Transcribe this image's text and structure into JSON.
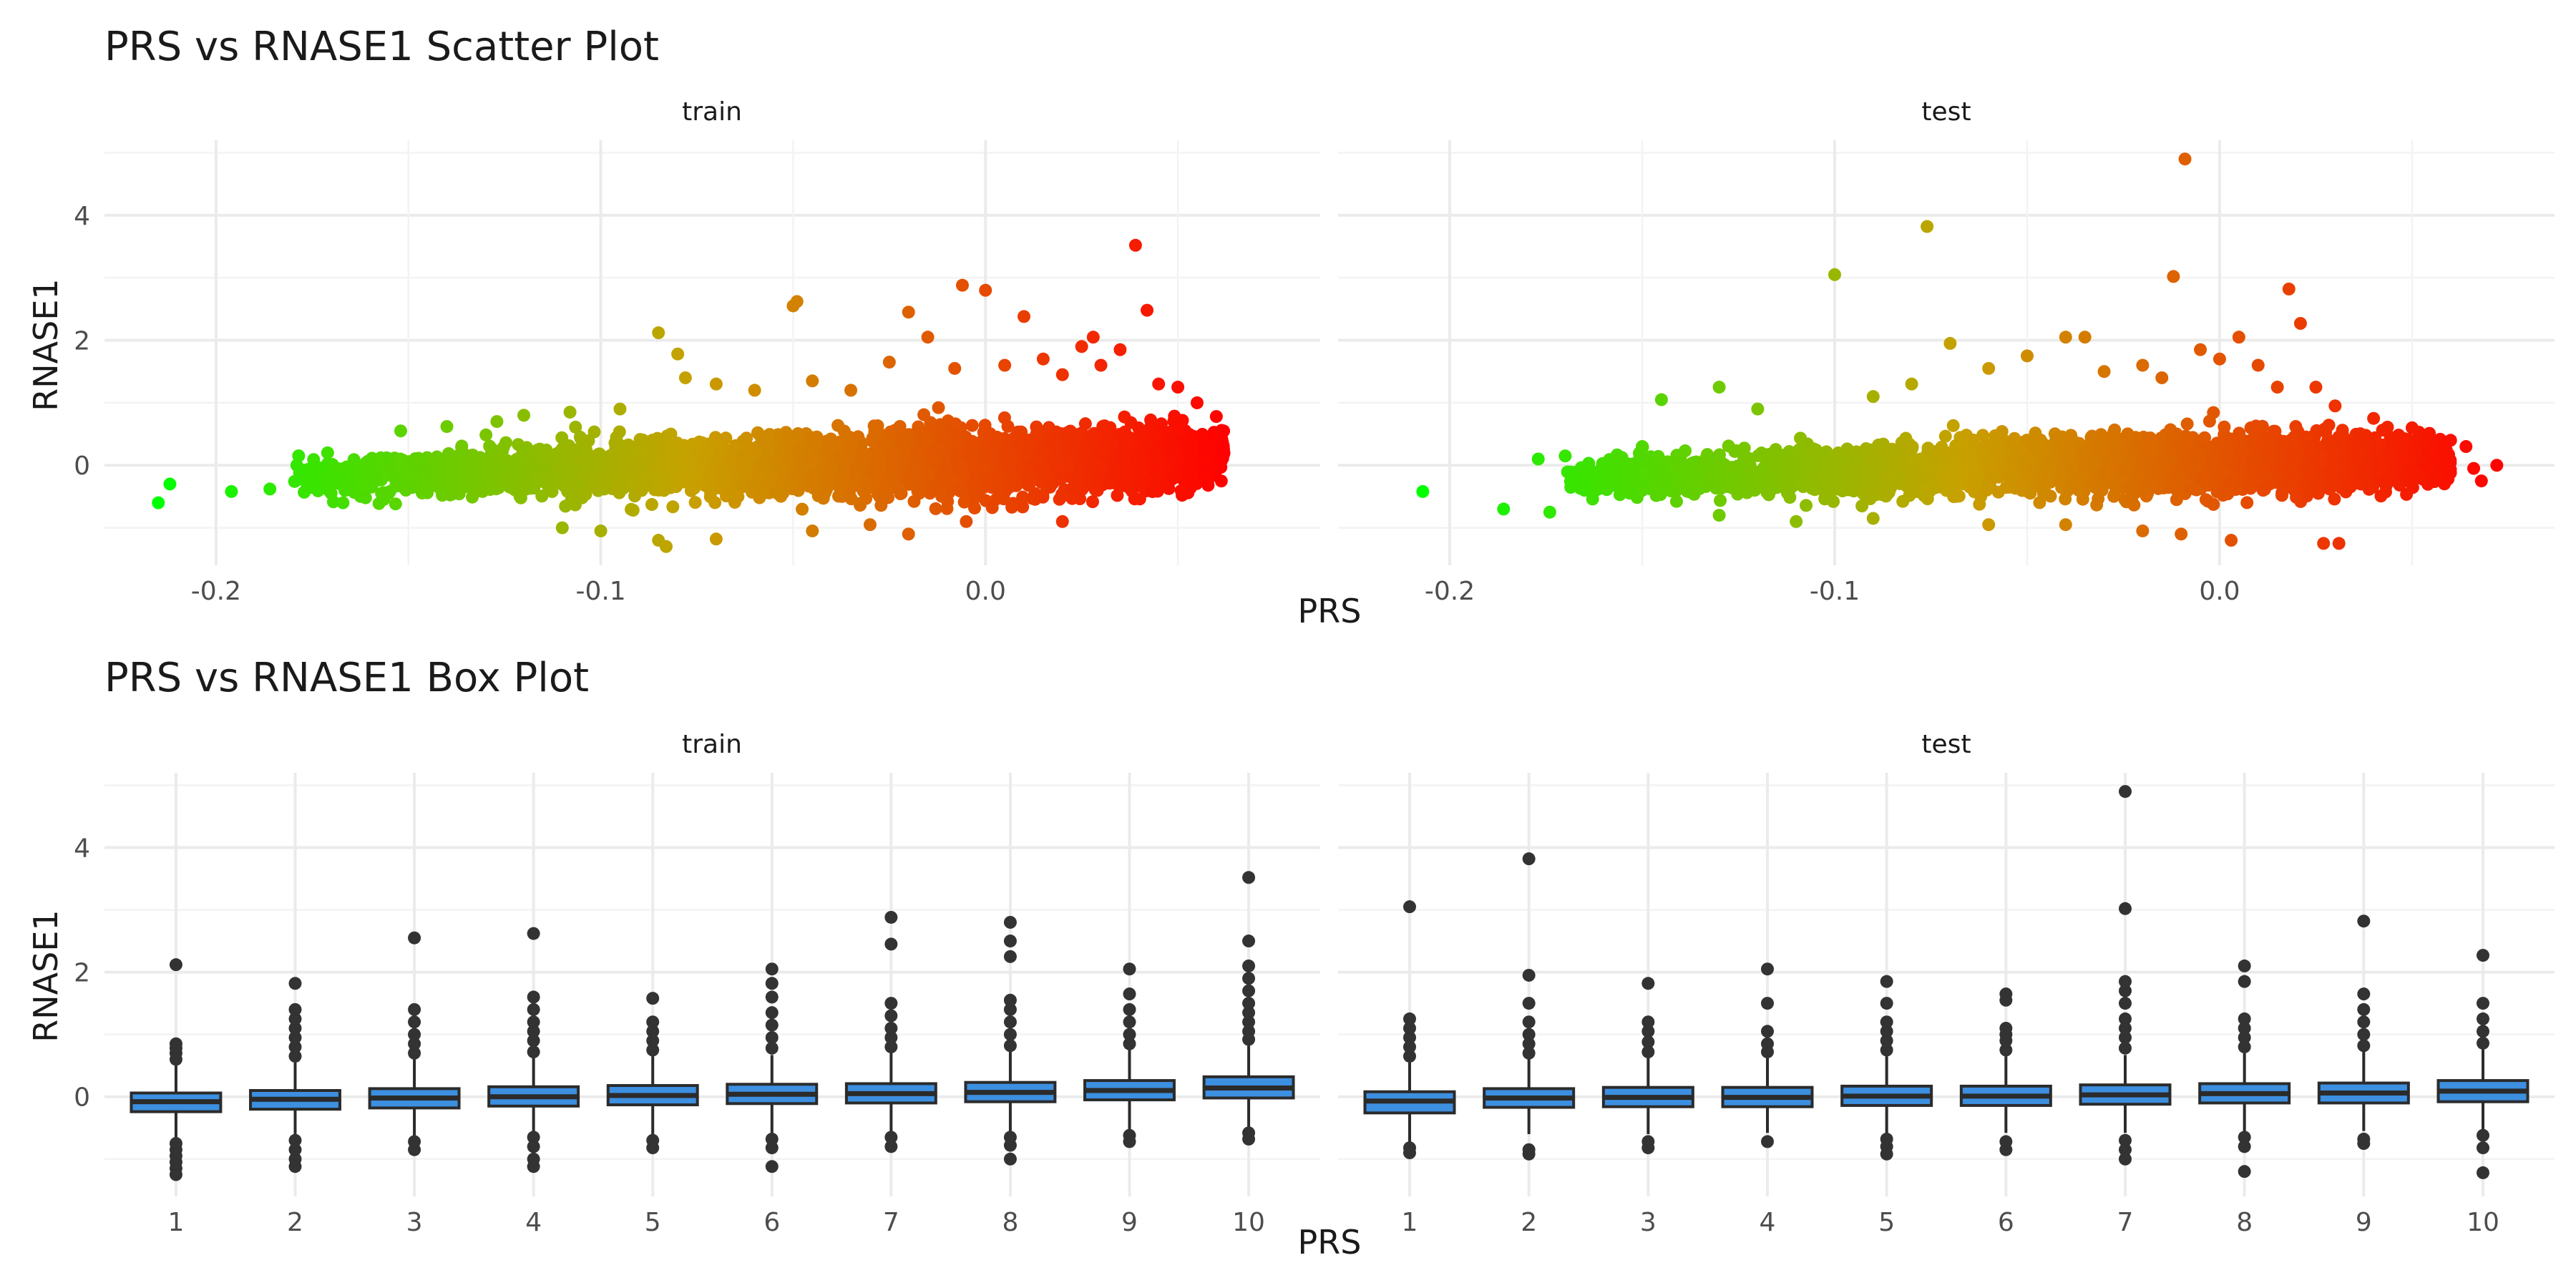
{
  "colors": {
    "low": "#00ff00",
    "mid": "#c8a000",
    "high": "#ff0000",
    "box_fill": "#3d8fe0",
    "box_stroke": "#2b2b2b",
    "outlier": "#333333"
  },
  "chart_data": [
    {
      "type": "scatter",
      "title": "PRS vs RNASE1 Scatter Plot",
      "xlabel": "PRS",
      "ylabel": "RNASE1",
      "ylim": [
        -1.6,
        5.2
      ],
      "yticks": [
        0,
        2,
        4
      ],
      "grid": true,
      "color_scale": "gradient by PRS: green (low) to red (high)",
      "facets": [
        {
          "name": "train",
          "xlim": [
            -0.229,
            0.087
          ],
          "xticks": [
            -0.2,
            -0.1,
            0.0
          ],
          "xtick_labels": [
            "-0.2",
            "-0.1",
            "0.0"
          ],
          "x_range": [
            -0.215,
            0.063
          ],
          "points": [
            [
              -0.215,
              -0.6
            ],
            [
              -0.212,
              -0.3
            ],
            [
              -0.196,
              -0.42
            ],
            [
              -0.186,
              -0.38
            ],
            [
              -0.179,
              0.0
            ],
            [
              -0.176,
              -0.3
            ],
            [
              -0.171,
              0.2
            ],
            [
              -0.167,
              -0.6
            ],
            [
              -0.16,
              -0.15
            ],
            [
              -0.152,
              0.55
            ],
            [
              -0.14,
              0.62
            ],
            [
              -0.127,
              0.7
            ],
            [
              -0.12,
              0.8
            ],
            [
              -0.108,
              0.85
            ],
            [
              -0.095,
              0.9
            ],
            [
              -0.085,
              2.12
            ],
            [
              -0.08,
              1.78
            ],
            [
              -0.078,
              1.4
            ],
            [
              -0.07,
              1.3
            ],
            [
              -0.06,
              1.2
            ],
            [
              -0.05,
              2.55
            ],
            [
              -0.049,
              2.62
            ],
            [
              -0.045,
              1.35
            ],
            [
              -0.035,
              1.2
            ],
            [
              -0.025,
              1.65
            ],
            [
              -0.02,
              2.45
            ],
            [
              -0.015,
              2.05
            ],
            [
              -0.008,
              1.55
            ],
            [
              -0.006,
              2.88
            ],
            [
              0.0,
              2.8
            ],
            [
              0.005,
              1.6
            ],
            [
              0.01,
              2.38
            ],
            [
              0.015,
              1.7
            ],
            [
              0.02,
              1.45
            ],
            [
              0.025,
              1.9
            ],
            [
              0.028,
              2.05
            ],
            [
              0.03,
              1.6
            ],
            [
              0.035,
              1.85
            ],
            [
              0.039,
              3.52
            ],
            [
              0.042,
              2.48
            ],
            [
              0.045,
              1.3
            ],
            [
              0.05,
              1.25
            ],
            [
              0.055,
              1.0
            ],
            [
              0.06,
              0.78
            ],
            [
              0.062,
              0.2
            ],
            [
              -0.11,
              -1.0
            ],
            [
              -0.1,
              -1.05
            ],
            [
              -0.085,
              -1.2
            ],
            [
              -0.083,
              -1.3
            ],
            [
              -0.07,
              -1.18
            ],
            [
              -0.045,
              -1.05
            ],
            [
              -0.03,
              -0.95
            ],
            [
              -0.02,
              -1.1
            ],
            [
              -0.005,
              -0.9
            ],
            [
              0.02,
              -0.9
            ]
          ],
          "cluster_curve": {
            "x": [
              -0.18,
              -0.15,
              -0.12,
              -0.09,
              -0.06,
              -0.03,
              0.0,
              0.03,
              0.05,
              0.062
            ],
            "median": [
              -0.2,
              -0.15,
              -0.1,
              -0.06,
              -0.03,
              0.0,
              0.04,
              0.08,
              0.12,
              0.15
            ],
            "spread": [
              0.3,
              0.4,
              0.5,
              0.55,
              0.55,
              0.6,
              0.6,
              0.6,
              0.55,
              0.45
            ]
          }
        },
        {
          "name": "test",
          "xlim": [
            -0.229,
            0.087
          ],
          "xticks": [
            -0.2,
            -0.1,
            0.0
          ],
          "xtick_labels": [
            "-0.2",
            "-0.1",
            "0.0"
          ],
          "x_range": [
            -0.207,
            0.074
          ],
          "points": [
            [
              -0.207,
              -0.42
            ],
            [
              -0.186,
              -0.7
            ],
            [
              -0.177,
              0.1
            ],
            [
              -0.174,
              -0.75
            ],
            [
              -0.17,
              0.15
            ],
            [
              -0.165,
              -0.4
            ],
            [
              -0.15,
              0.3
            ],
            [
              -0.145,
              1.05
            ],
            [
              -0.13,
              1.25
            ],
            [
              -0.12,
              0.9
            ],
            [
              -0.1,
              3.05
            ],
            [
              -0.09,
              1.1
            ],
            [
              -0.08,
              1.3
            ],
            [
              -0.076,
              3.82
            ],
            [
              -0.07,
              1.95
            ],
            [
              -0.06,
              1.55
            ],
            [
              -0.05,
              1.75
            ],
            [
              -0.04,
              2.05
            ],
            [
              -0.035,
              2.05
            ],
            [
              -0.03,
              1.5
            ],
            [
              -0.02,
              1.6
            ],
            [
              -0.015,
              1.4
            ],
            [
              -0.012,
              3.02
            ],
            [
              -0.009,
              4.9
            ],
            [
              -0.005,
              1.85
            ],
            [
              0.0,
              1.7
            ],
            [
              0.005,
              2.05
            ],
            [
              0.01,
              1.6
            ],
            [
              0.015,
              1.25
            ],
            [
              0.018,
              2.82
            ],
            [
              0.021,
              2.27
            ],
            [
              0.025,
              1.25
            ],
            [
              0.03,
              0.95
            ],
            [
              0.04,
              0.75
            ],
            [
              0.05,
              0.6
            ],
            [
              0.06,
              0.4
            ],
            [
              0.064,
              0.3
            ],
            [
              0.066,
              -0.05
            ],
            [
              0.068,
              -0.25
            ],
            [
              0.072,
              0.0
            ],
            [
              -0.13,
              -0.8
            ],
            [
              -0.11,
              -0.9
            ],
            [
              -0.09,
              -0.85
            ],
            [
              -0.06,
              -0.95
            ],
            [
              -0.04,
              -0.95
            ],
            [
              -0.02,
              -1.05
            ],
            [
              -0.01,
              -1.1
            ],
            [
              0.003,
              -1.2
            ],
            [
              0.027,
              -1.25
            ],
            [
              0.031,
              -1.25
            ]
          ],
          "cluster_curve": {
            "x": [
              -0.17,
              -0.14,
              -0.11,
              -0.08,
              -0.05,
              -0.02,
              0.01,
              0.03,
              0.05,
              0.06
            ],
            "median": [
              -0.2,
              -0.15,
              -0.1,
              -0.07,
              -0.04,
              0.0,
              0.03,
              0.06,
              0.08,
              0.05
            ],
            "spread": [
              0.3,
              0.4,
              0.45,
              0.5,
              0.5,
              0.55,
              0.55,
              0.5,
              0.45,
              0.35
            ]
          }
        }
      ]
    },
    {
      "type": "box",
      "title": "PRS vs RNASE1 Box Plot",
      "xlabel": "PRS",
      "ylabel": "RNASE1",
      "ylim": [
        -1.6,
        5.2
      ],
      "yticks": [
        0,
        2,
        4
      ],
      "grid": true,
      "categories": [
        "1",
        "2",
        "3",
        "4",
        "5",
        "6",
        "7",
        "8",
        "9",
        "10"
      ],
      "facets": [
        {
          "name": "train",
          "boxes": [
            {
              "q1": -0.24,
              "median": -0.08,
              "q3": 0.06,
              "wlo": -0.68,
              "whi": 0.5,
              "outliers": [
                0.6,
                0.7,
                0.78,
                0.85,
                2.12,
                -0.75,
                -0.85,
                -0.95,
                -1.05,
                -1.15,
                -1.25
              ]
            },
            {
              "q1": -0.2,
              "median": -0.04,
              "q3": 0.1,
              "wlo": -0.62,
              "whi": 0.55,
              "outliers": [
                0.65,
                0.8,
                0.95,
                1.1,
                1.25,
                1.4,
                1.82,
                -0.7,
                -0.85,
                -1.0,
                -1.12
              ]
            },
            {
              "q1": -0.18,
              "median": -0.02,
              "q3": 0.13,
              "wlo": -0.62,
              "whi": 0.6,
              "outliers": [
                0.7,
                0.85,
                1.0,
                1.2,
                1.4,
                2.55,
                -0.72,
                -0.85
              ]
            },
            {
              "q1": -0.15,
              "median": 0.0,
              "q3": 0.16,
              "wlo": -0.6,
              "whi": 0.62,
              "outliers": [
                0.72,
                0.9,
                1.05,
                1.2,
                1.4,
                1.6,
                2.62,
                -0.65,
                -0.8,
                -1.0,
                -1.12
              ]
            },
            {
              "q1": -0.13,
              "median": 0.02,
              "q3": 0.18,
              "wlo": -0.6,
              "whi": 0.65,
              "outliers": [
                0.75,
                0.9,
                1.05,
                1.2,
                1.58,
                -0.7,
                -0.82
              ]
            },
            {
              "q1": -0.11,
              "median": 0.04,
              "q3": 0.2,
              "wlo": -0.58,
              "whi": 0.67,
              "outliers": [
                0.78,
                0.95,
                1.15,
                1.35,
                1.6,
                1.82,
                2.05,
                -0.68,
                -0.82,
                -1.12
              ]
            },
            {
              "q1": -0.1,
              "median": 0.05,
              "q3": 0.21,
              "wlo": -0.56,
              "whi": 0.7,
              "outliers": [
                0.8,
                0.95,
                1.1,
                1.3,
                1.5,
                2.45,
                2.88,
                -0.65,
                -0.8
              ]
            },
            {
              "q1": -0.08,
              "median": 0.07,
              "q3": 0.23,
              "wlo": -0.55,
              "whi": 0.72,
              "outliers": [
                0.82,
                1.0,
                1.2,
                1.4,
                1.55,
                2.25,
                2.5,
                2.8,
                -0.65,
                -0.78,
                -1.0
              ]
            },
            {
              "q1": -0.05,
              "median": 0.1,
              "q3": 0.26,
              "wlo": -0.52,
              "whi": 0.75,
              "outliers": [
                0.85,
                1.0,
                1.2,
                1.4,
                1.65,
                2.05,
                -0.62,
                -0.72
              ]
            },
            {
              "q1": -0.02,
              "median": 0.14,
              "q3": 0.32,
              "wlo": -0.48,
              "whi": 0.82,
              "outliers": [
                0.92,
                1.05,
                1.2,
                1.35,
                1.5,
                1.7,
                1.9,
                2.1,
                2.5,
                3.52,
                -0.58,
                -0.68
              ]
            }
          ]
        },
        {
          "name": "test",
          "boxes": [
            {
              "q1": -0.26,
              "median": -0.07,
              "q3": 0.08,
              "wlo": -0.75,
              "whi": 0.55,
              "outliers": [
                0.65,
                0.8,
                0.95,
                1.1,
                1.25,
                3.05,
                -0.82,
                -0.9
              ]
            },
            {
              "q1": -0.17,
              "median": -0.02,
              "q3": 0.13,
              "wlo": -0.6,
              "whi": 0.6,
              "outliers": [
                0.7,
                0.85,
                1.0,
                1.2,
                1.5,
                1.95,
                3.82,
                -0.85,
                -0.92
              ]
            },
            {
              "q1": -0.16,
              "median": -0.01,
              "q3": 0.15,
              "wlo": -0.6,
              "whi": 0.62,
              "outliers": [
                0.72,
                0.88,
                1.05,
                1.2,
                1.82,
                -0.72,
                -0.82
              ]
            },
            {
              "q1": -0.16,
              "median": -0.01,
              "q3": 0.15,
              "wlo": -0.58,
              "whi": 0.62,
              "outliers": [
                0.72,
                0.85,
                1.05,
                1.5,
                2.05,
                -0.72
              ]
            },
            {
              "q1": -0.14,
              "median": 0.01,
              "q3": 0.17,
              "wlo": -0.58,
              "whi": 0.65,
              "outliers": [
                0.75,
                0.9,
                1.05,
                1.2,
                1.5,
                1.85,
                -0.68,
                -0.8,
                -0.92
              ]
            },
            {
              "q1": -0.14,
              "median": 0.01,
              "q3": 0.17,
              "wlo": -0.58,
              "whi": 0.65,
              "outliers": [
                0.75,
                0.9,
                1.0,
                1.1,
                1.55,
                1.65,
                -0.72,
                -0.85
              ]
            },
            {
              "q1": -0.12,
              "median": 0.03,
              "q3": 0.19,
              "wlo": -0.58,
              "whi": 0.67,
              "outliers": [
                0.78,
                0.95,
                1.1,
                1.25,
                1.5,
                1.7,
                1.85,
                3.02,
                4.9,
                -0.7,
                -0.85,
                -1.0
              ]
            },
            {
              "q1": -0.1,
              "median": 0.05,
              "q3": 0.21,
              "wlo": -0.56,
              "whi": 0.7,
              "outliers": [
                0.8,
                0.95,
                1.1,
                1.25,
                1.85,
                2.1,
                -0.65,
                -0.8,
                -1.2
              ]
            },
            {
              "q1": -0.1,
              "median": 0.06,
              "q3": 0.22,
              "wlo": -0.55,
              "whi": 0.72,
              "outliers": [
                0.82,
                1.0,
                1.2,
                1.4,
                1.65,
                2.82,
                -0.68,
                -0.75
              ]
            },
            {
              "q1": -0.08,
              "median": 0.09,
              "q3": 0.26,
              "wlo": -0.55,
              "whi": 0.76,
              "outliers": [
                0.86,
                1.05,
                1.25,
                1.5,
                2.27,
                -0.62,
                -0.82,
                -1.22
              ]
            }
          ]
        }
      ]
    }
  ]
}
